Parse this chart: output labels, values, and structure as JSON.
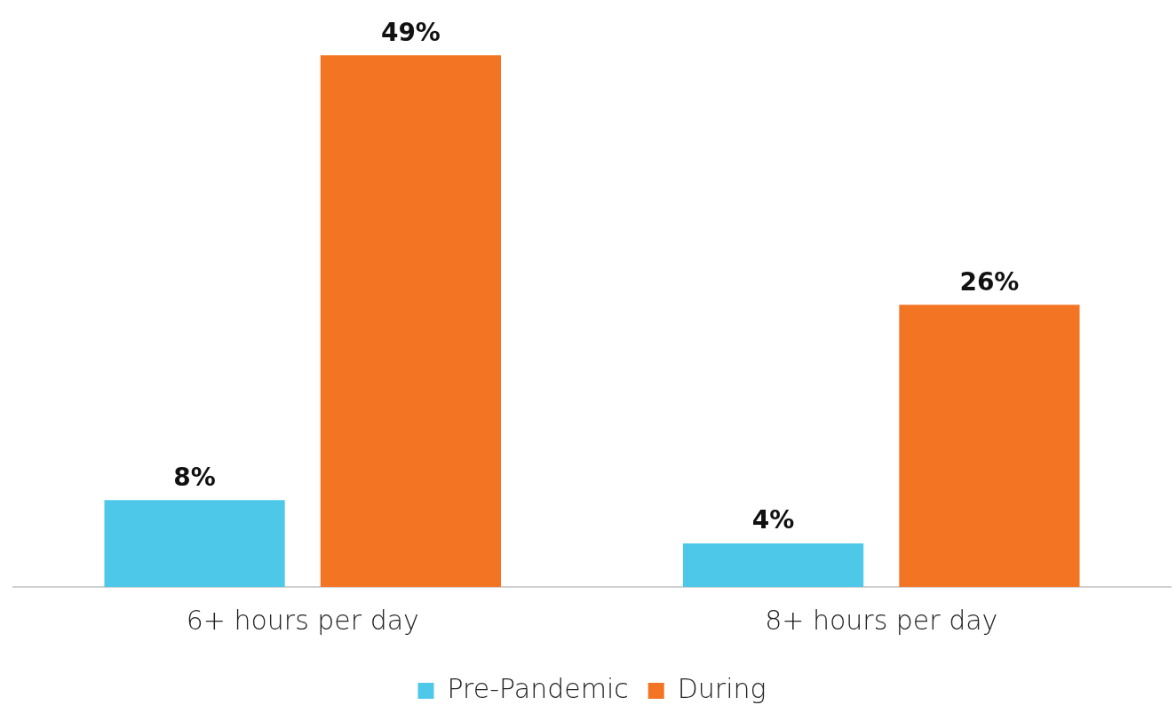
{
  "chart_data": {
    "type": "bar",
    "categories": [
      "6+ hours per day",
      "8+ hours per day"
    ],
    "series": [
      {
        "name": "Pre-Pandemic",
        "color": "#4dc8e9",
        "values": [
          8,
          4
        ],
        "value_labels": [
          "8%",
          "4%"
        ]
      },
      {
        "name": "During",
        "color": "#f37524",
        "values": [
          49,
          26
        ],
        "value_labels": [
          "49%",
          "26%"
        ]
      }
    ],
    "grid": false,
    "legend": "bottom",
    "tick_labels": "x"
  }
}
